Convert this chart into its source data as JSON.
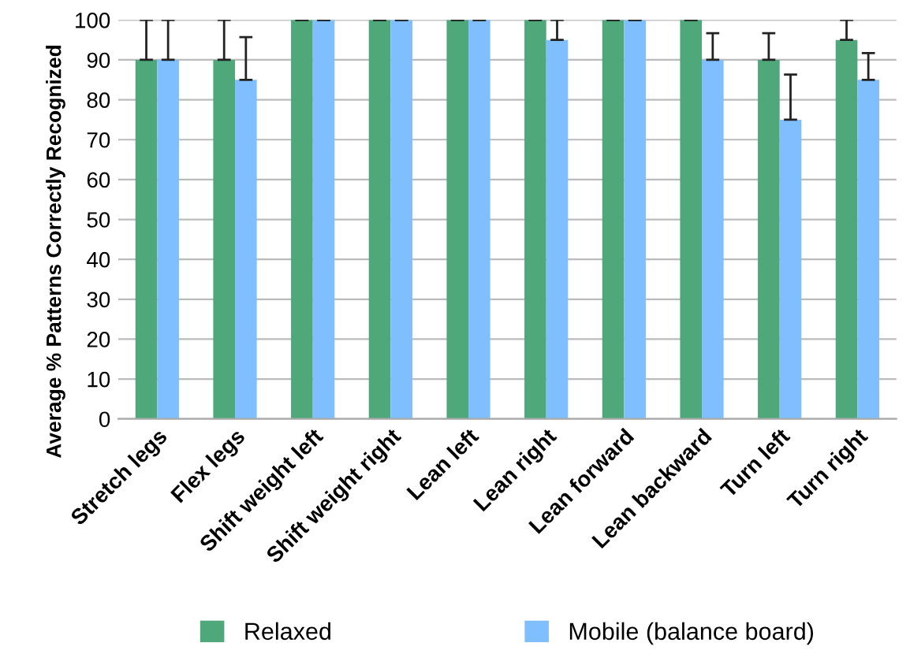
{
  "chart_data": {
    "type": "bar",
    "ylabel": "Average % Patterns Correctly Recognized",
    "categories": [
      "Stretch legs",
      "Flex legs",
      "Shift weight left",
      "Shift weight right",
      "Lean left",
      "Lean right",
      "Lean forward",
      "Lean backward",
      "Turn left",
      "Turn right"
    ],
    "series": [
      {
        "name": "Relaxed",
        "color": "#4ea87a",
        "values": [
          90,
          90,
          100,
          100,
          100,
          100,
          100,
          100,
          90,
          95
        ],
        "errors": [
          [
            90,
            100
          ],
          [
            90,
            100
          ],
          [
            100,
            100
          ],
          [
            100,
            100
          ],
          [
            100,
            100
          ],
          [
            100,
            100
          ],
          [
            100,
            100
          ],
          [
            100,
            100
          ],
          [
            90,
            96.7
          ],
          [
            95,
            100
          ]
        ]
      },
      {
        "name": "Mobile (balance board)",
        "color": "#7fbfff",
        "values": [
          90,
          85,
          100,
          100,
          100,
          95,
          100,
          90,
          75,
          85
        ],
        "errors": [
          [
            90,
            100
          ],
          [
            85,
            95.7
          ],
          [
            100,
            100
          ],
          [
            100,
            100
          ],
          [
            100,
            100
          ],
          [
            95,
            100
          ],
          [
            100,
            100
          ],
          [
            90,
            96.7
          ],
          [
            75,
            86.3
          ],
          [
            85,
            91.7
          ]
        ]
      }
    ],
    "ylim": [
      0,
      100
    ],
    "yticks": [
      0,
      10,
      20,
      30,
      40,
      50,
      60,
      70,
      80,
      90,
      100
    ],
    "grid": "y",
    "legend": "bottom"
  }
}
